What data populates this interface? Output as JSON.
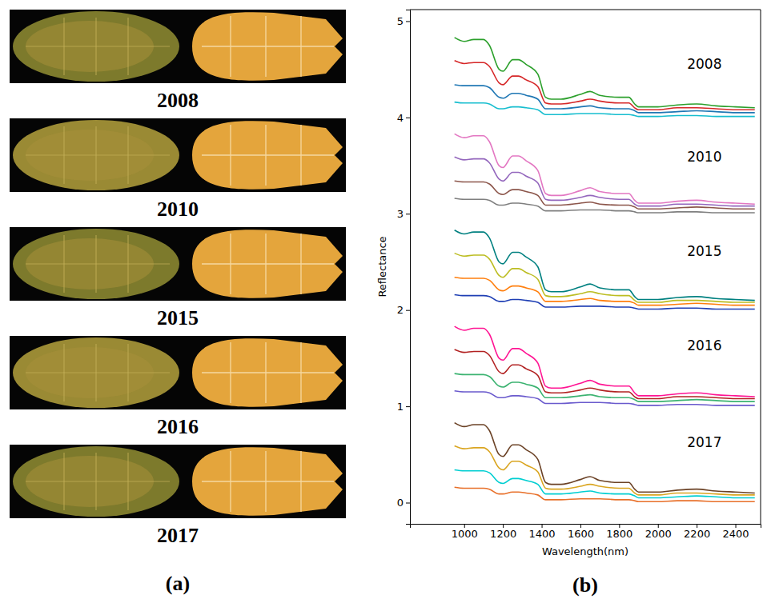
{
  "figure_a": {
    "label": "(a)",
    "years": [
      "2008",
      "2010",
      "2015",
      "2016",
      "2017"
    ]
  },
  "chart_data": {
    "type": "line",
    "panel_label": "(b)",
    "x_label": "Wavelength(nm)",
    "y_label": "Reflectance",
    "xlim": [
      720,
      2530
    ],
    "ylim": [
      -0.22,
      5.12
    ],
    "xticks": [
      1000,
      1200,
      1400,
      1600,
      1800,
      2000,
      2200,
      2400
    ],
    "yticks": [
      0,
      1,
      2,
      3,
      4,
      5
    ],
    "grid": false,
    "annotations": [
      {
        "text": "2008",
        "x": 2240,
        "y": 4.55
      },
      {
        "text": "2010",
        "x": 2240,
        "y": 3.58
      },
      {
        "text": "2015",
        "x": 2240,
        "y": 2.6
      },
      {
        "text": "2016",
        "x": 2240,
        "y": 1.62
      },
      {
        "text": "2017",
        "x": 2240,
        "y": 0.62
      }
    ],
    "x": [
      950,
      1000,
      1050,
      1100,
      1130,
      1180,
      1200,
      1250,
      1280,
      1320,
      1380,
      1420,
      1450,
      1500,
      1600,
      1650,
      1700,
      1800,
      1850,
      1880,
      1900,
      2000,
      2100,
      2200,
      2300,
      2400,
      2500
    ],
    "series": [
      {
        "color": "#2ca02c",
        "values": [
          4.83,
          4.79,
          4.81,
          4.81,
          4.75,
          4.5,
          4.48,
          4.6,
          4.6,
          4.55,
          4.45,
          4.21,
          4.19,
          4.19,
          4.24,
          4.27,
          4.23,
          4.21,
          4.21,
          4.14,
          4.11,
          4.11,
          4.13,
          4.14,
          4.12,
          4.11,
          4.1
        ]
      },
      {
        "color": "#d62728",
        "values": [
          4.59,
          4.56,
          4.57,
          4.57,
          4.53,
          4.36,
          4.34,
          4.43,
          4.43,
          4.39,
          4.32,
          4.15,
          4.14,
          4.14,
          4.17,
          4.19,
          4.17,
          4.15,
          4.15,
          4.1,
          4.08,
          4.08,
          4.1,
          4.1,
          4.09,
          4.08,
          4.08
        ]
      },
      {
        "color": "#1f77b4",
        "values": [
          4.34,
          4.33,
          4.33,
          4.33,
          4.31,
          4.21,
          4.2,
          4.25,
          4.25,
          4.23,
          4.19,
          4.09,
          4.09,
          4.09,
          4.11,
          4.12,
          4.1,
          4.09,
          4.09,
          4.07,
          4.05,
          4.05,
          4.06,
          4.07,
          4.06,
          4.05,
          4.05
        ]
      },
      {
        "color": "#17becf",
        "values": [
          4.16,
          4.15,
          4.15,
          4.15,
          4.14,
          4.09,
          4.09,
          4.11,
          4.11,
          4.1,
          4.08,
          4.03,
          4.03,
          4.03,
          4.04,
          4.04,
          4.04,
          4.03,
          4.03,
          4.02,
          4.01,
          4.01,
          4.02,
          4.02,
          4.01,
          4.01,
          4.01
        ]
      },
      {
        "color": "#e377c2",
        "values": [
          3.83,
          3.79,
          3.81,
          3.81,
          3.75,
          3.5,
          3.48,
          3.6,
          3.6,
          3.55,
          3.45,
          3.21,
          3.19,
          3.19,
          3.24,
          3.27,
          3.23,
          3.21,
          3.21,
          3.14,
          3.11,
          3.11,
          3.13,
          3.14,
          3.12,
          3.11,
          3.1
        ]
      },
      {
        "color": "#9467bd",
        "values": [
          3.59,
          3.56,
          3.57,
          3.57,
          3.53,
          3.36,
          3.34,
          3.43,
          3.43,
          3.39,
          3.32,
          3.15,
          3.14,
          3.14,
          3.17,
          3.19,
          3.17,
          3.15,
          3.15,
          3.1,
          3.08,
          3.08,
          3.1,
          3.1,
          3.09,
          3.08,
          3.08
        ]
      },
      {
        "color": "#8c564b",
        "values": [
          3.34,
          3.33,
          3.33,
          3.33,
          3.31,
          3.21,
          3.2,
          3.25,
          3.25,
          3.23,
          3.19,
          3.09,
          3.09,
          3.09,
          3.11,
          3.12,
          3.1,
          3.09,
          3.09,
          3.07,
          3.05,
          3.05,
          3.06,
          3.07,
          3.06,
          3.05,
          3.05
        ]
      },
      {
        "color": "#7f7f7f",
        "values": [
          3.16,
          3.15,
          3.15,
          3.15,
          3.14,
          3.09,
          3.09,
          3.11,
          3.11,
          3.1,
          3.08,
          3.03,
          3.03,
          3.03,
          3.04,
          3.04,
          3.04,
          3.03,
          3.03,
          3.02,
          3.01,
          3.01,
          3.02,
          3.02,
          3.01,
          3.01,
          3.01
        ]
      },
      {
        "color": "#008080",
        "values": [
          2.83,
          2.79,
          2.81,
          2.81,
          2.75,
          2.5,
          2.48,
          2.6,
          2.6,
          2.55,
          2.45,
          2.21,
          2.19,
          2.19,
          2.24,
          2.27,
          2.23,
          2.21,
          2.21,
          2.14,
          2.11,
          2.11,
          2.13,
          2.14,
          2.12,
          2.11,
          2.1
        ]
      },
      {
        "color": "#bcbd22",
        "values": [
          2.59,
          2.56,
          2.57,
          2.57,
          2.53,
          2.36,
          2.34,
          2.43,
          2.43,
          2.39,
          2.32,
          2.15,
          2.14,
          2.14,
          2.17,
          2.19,
          2.17,
          2.15,
          2.15,
          2.1,
          2.08,
          2.08,
          2.1,
          2.1,
          2.09,
          2.08,
          2.08
        ]
      },
      {
        "color": "#ff7f0e",
        "values": [
          2.34,
          2.33,
          2.33,
          2.33,
          2.31,
          2.21,
          2.2,
          2.25,
          2.25,
          2.23,
          2.19,
          2.09,
          2.09,
          2.09,
          2.11,
          2.12,
          2.1,
          2.09,
          2.09,
          2.07,
          2.05,
          2.05,
          2.06,
          2.07,
          2.06,
          2.05,
          2.05
        ]
      },
      {
        "color": "#1f3fb4",
        "values": [
          2.16,
          2.15,
          2.15,
          2.15,
          2.14,
          2.09,
          2.09,
          2.11,
          2.11,
          2.1,
          2.08,
          2.03,
          2.03,
          2.03,
          2.04,
          2.04,
          2.04,
          2.03,
          2.03,
          2.02,
          2.01,
          2.01,
          2.02,
          2.02,
          2.01,
          2.01,
          2.01
        ]
      },
      {
        "color": "#ff1493",
        "values": [
          1.83,
          1.79,
          1.81,
          1.81,
          1.75,
          1.5,
          1.48,
          1.6,
          1.6,
          1.55,
          1.45,
          1.21,
          1.19,
          1.19,
          1.24,
          1.27,
          1.23,
          1.21,
          1.21,
          1.14,
          1.11,
          1.11,
          1.13,
          1.14,
          1.12,
          1.11,
          1.1
        ]
      },
      {
        "color": "#b22222",
        "values": [
          1.59,
          1.56,
          1.57,
          1.57,
          1.53,
          1.36,
          1.34,
          1.43,
          1.43,
          1.39,
          1.32,
          1.15,
          1.14,
          1.14,
          1.17,
          1.19,
          1.17,
          1.15,
          1.15,
          1.1,
          1.08,
          1.08,
          1.1,
          1.1,
          1.09,
          1.08,
          1.08
        ]
      },
      {
        "color": "#3cb371",
        "values": [
          1.34,
          1.33,
          1.33,
          1.33,
          1.31,
          1.21,
          1.2,
          1.25,
          1.25,
          1.23,
          1.19,
          1.09,
          1.09,
          1.09,
          1.11,
          1.12,
          1.1,
          1.09,
          1.09,
          1.07,
          1.05,
          1.05,
          1.06,
          1.07,
          1.06,
          1.05,
          1.05
        ]
      },
      {
        "color": "#6a5acd",
        "values": [
          1.16,
          1.15,
          1.15,
          1.15,
          1.14,
          1.09,
          1.09,
          1.11,
          1.11,
          1.1,
          1.08,
          1.03,
          1.03,
          1.03,
          1.04,
          1.04,
          1.04,
          1.03,
          1.03,
          1.02,
          1.01,
          1.01,
          1.02,
          1.02,
          1.01,
          1.01,
          1.01
        ]
      },
      {
        "color": "#6b4226",
        "values": [
          0.83,
          0.79,
          0.81,
          0.81,
          0.75,
          0.5,
          0.48,
          0.6,
          0.6,
          0.55,
          0.45,
          0.21,
          0.19,
          0.19,
          0.24,
          0.27,
          0.23,
          0.21,
          0.21,
          0.14,
          0.11,
          0.11,
          0.13,
          0.14,
          0.12,
          0.11,
          0.1
        ]
      },
      {
        "color": "#daa520",
        "values": [
          0.59,
          0.56,
          0.57,
          0.57,
          0.53,
          0.36,
          0.34,
          0.43,
          0.43,
          0.39,
          0.32,
          0.15,
          0.14,
          0.14,
          0.17,
          0.19,
          0.17,
          0.15,
          0.15,
          0.1,
          0.08,
          0.08,
          0.1,
          0.1,
          0.09,
          0.08,
          0.08
        ]
      },
      {
        "color": "#00ced1",
        "values": [
          0.34,
          0.33,
          0.33,
          0.33,
          0.31,
          0.21,
          0.2,
          0.25,
          0.25,
          0.23,
          0.19,
          0.09,
          0.09,
          0.09,
          0.11,
          0.12,
          0.1,
          0.09,
          0.09,
          0.07,
          0.05,
          0.05,
          0.06,
          0.07,
          0.06,
          0.05,
          0.05
        ]
      },
      {
        "color": "#e8702a",
        "values": [
          0.16,
          0.15,
          0.15,
          0.15,
          0.14,
          0.09,
          0.09,
          0.11,
          0.11,
          0.1,
          0.08,
          0.03,
          0.03,
          0.03,
          0.04,
          0.04,
          0.04,
          0.03,
          0.03,
          0.02,
          0.01,
          0.01,
          0.02,
          0.02,
          0.01,
          0.01,
          0.01
        ]
      }
    ]
  }
}
